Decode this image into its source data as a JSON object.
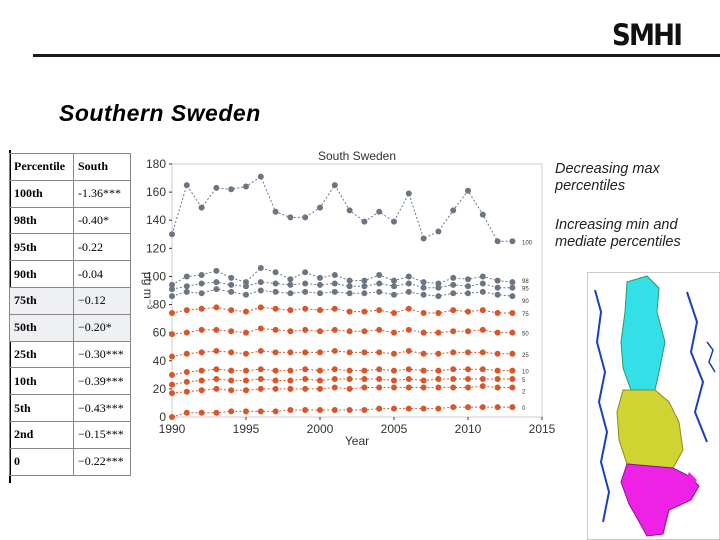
{
  "header": {
    "logo_text": "SMHI",
    "title": "Southern Sweden"
  },
  "table": {
    "headers": [
      "Percentile",
      "South"
    ],
    "rows": [
      {
        "p": "100th",
        "v": "-1.36***"
      },
      {
        "p": "98th",
        "v": "-0.40*"
      },
      {
        "p": "95th",
        "v": "-0.22"
      },
      {
        "p": "90th",
        "v": "-0.04"
      },
      {
        "p": "75th",
        "v": "−0.12"
      },
      {
        "p": "50th",
        "v": "−0.20*"
      },
      {
        "p": "25th",
        "v": "−0.30***"
      },
      {
        "p": "10th",
        "v": "−0.39***"
      },
      {
        "p": "5th",
        "v": "−0.43***"
      },
      {
        "p": "2nd",
        "v": "−0.15***"
      },
      {
        "p": "0",
        "v": "−0.22***"
      }
    ]
  },
  "annotations": {
    "decreasing": "Decreasing max percentiles",
    "increasing": "Increasing min and mediate percentiles"
  },
  "colors": {
    "grey_series": "#6b7682",
    "orange_series": "#d9562b"
  },
  "chart_data": {
    "type": "line",
    "title": "South Sweden",
    "xlabel": "Year",
    "ylabel": "μg m⁻³",
    "xlim": [
      1990,
      2015
    ],
    "ylim": [
      0,
      180
    ],
    "xticks": [
      1990,
      1995,
      2000,
      2005,
      2010,
      2015
    ],
    "yticks": [
      0,
      20,
      40,
      60,
      80,
      100,
      120,
      140,
      160,
      180
    ],
    "x": [
      1990,
      1991,
      1992,
      1993,
      1994,
      1995,
      1996,
      1997,
      1998,
      1999,
      2000,
      2001,
      2002,
      2003,
      2004,
      2005,
      2006,
      2007,
      2008,
      2009,
      2010,
      2011,
      2012,
      2013
    ],
    "series": [
      {
        "name": "100",
        "color": "grey",
        "values": [
          130,
          165,
          149,
          163,
          162,
          164,
          171,
          146,
          142,
          142,
          149,
          165,
          147,
          139,
          146,
          139,
          159,
          127,
          132,
          147,
          161,
          144,
          125,
          125
        ]
      },
      {
        "name": "98",
        "color": "grey",
        "values": [
          94,
          100,
          101,
          104,
          99,
          96,
          106,
          103,
          98,
          103,
          99,
          101,
          97,
          97,
          101,
          97,
          100,
          96,
          95,
          99,
          98,
          100,
          97,
          96
        ]
      },
      {
        "name": "95",
        "color": "grey",
        "values": [
          91,
          93,
          95,
          96,
          94,
          93,
          96,
          95,
          94,
          95,
          94,
          95,
          93,
          93,
          95,
          93,
          95,
          92,
          92,
          94,
          93,
          95,
          92,
          92
        ]
      },
      {
        "name": "90",
        "color": "grey",
        "values": [
          86,
          89,
          88,
          91,
          89,
          87,
          90,
          89,
          88,
          89,
          88,
          89,
          88,
          88,
          89,
          87,
          89,
          87,
          86,
          88,
          88,
          89,
          87,
          86
        ]
      },
      {
        "name": "75",
        "color": "orange",
        "values": [
          74,
          76,
          77,
          78,
          76,
          75,
          78,
          77,
          76,
          77,
          76,
          77,
          75,
          75,
          76,
          74,
          77,
          74,
          74,
          76,
          75,
          76,
          74,
          74
        ]
      },
      {
        "name": "50",
        "color": "orange",
        "values": [
          59,
          60,
          62,
          62,
          61,
          60,
          63,
          62,
          61,
          62,
          61,
          62,
          61,
          61,
          62,
          60,
          62,
          60,
          60,
          61,
          61,
          62,
          60,
          60
        ]
      },
      {
        "name": "25",
        "color": "orange",
        "values": [
          43,
          45,
          46,
          47,
          46,
          45,
          47,
          46,
          46,
          46,
          46,
          47,
          46,
          46,
          46,
          45,
          47,
          45,
          45,
          46,
          46,
          46,
          45,
          45
        ]
      },
      {
        "name": "10",
        "color": "orange",
        "values": [
          30,
          32,
          33,
          34,
          33,
          33,
          34,
          33,
          33,
          34,
          33,
          34,
          33,
          33,
          34,
          33,
          34,
          33,
          33,
          34,
          34,
          34,
          33,
          33
        ]
      },
      {
        "name": "5",
        "color": "orange",
        "values": [
          23,
          25,
          26,
          27,
          26,
          26,
          27,
          26,
          26,
          27,
          26,
          27,
          27,
          27,
          27,
          26,
          27,
          26,
          27,
          27,
          27,
          27,
          27,
          27
        ]
      },
      {
        "name": "2",
        "color": "orange",
        "values": [
          17,
          18,
          19,
          20,
          19,
          19,
          20,
          20,
          20,
          20,
          20,
          21,
          20,
          21,
          21,
          21,
          21,
          21,
          21,
          21,
          21,
          22,
          21,
          21
        ]
      },
      {
        "name": "0",
        "color": "orange",
        "values": [
          0,
          3,
          3,
          3,
          4,
          4,
          4,
          4,
          5,
          5,
          5,
          5,
          5,
          5,
          6,
          6,
          6,
          6,
          6,
          7,
          7,
          7,
          7,
          7
        ]
      }
    ]
  }
}
